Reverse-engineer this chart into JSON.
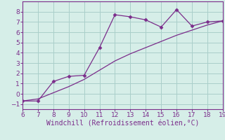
{
  "xlabel": "Windchill (Refroidissement éolien,°C)",
  "line1_x": [
    6,
    7,
    8,
    9,
    10,
    11,
    12,
    13,
    14,
    15,
    16,
    17,
    18,
    19
  ],
  "line1_y": [
    -0.7,
    -0.7,
    1.2,
    1.7,
    1.8,
    4.5,
    7.7,
    7.5,
    7.2,
    6.5,
    8.2,
    6.6,
    7.0,
    7.1
  ],
  "line2_x": [
    6,
    7,
    8,
    9,
    10,
    11,
    12,
    13,
    14,
    15,
    16,
    17,
    18,
    19
  ],
  "line2_y": [
    -0.7,
    -0.5,
    0.1,
    0.7,
    1.4,
    2.3,
    3.2,
    3.9,
    4.5,
    5.1,
    5.7,
    6.2,
    6.7,
    7.1
  ],
  "line_color": "#7B2D8B",
  "bg_color": "#D6EEE8",
  "grid_color": "#AACFCA",
  "tick_color": "#7B2D8B",
  "spine_color": "#7B2D8B",
  "xlim": [
    6,
    19
  ],
  "ylim": [
    -1.5,
    9.0
  ],
  "yticks": [
    -1,
    0,
    1,
    2,
    3,
    4,
    5,
    6,
    7,
    8
  ],
  "xticks": [
    6,
    7,
    8,
    9,
    10,
    11,
    12,
    13,
    14,
    15,
    16,
    17,
    18,
    19
  ],
  "tick_fontsize": 6.5,
  "xlabel_fontsize": 7.0
}
